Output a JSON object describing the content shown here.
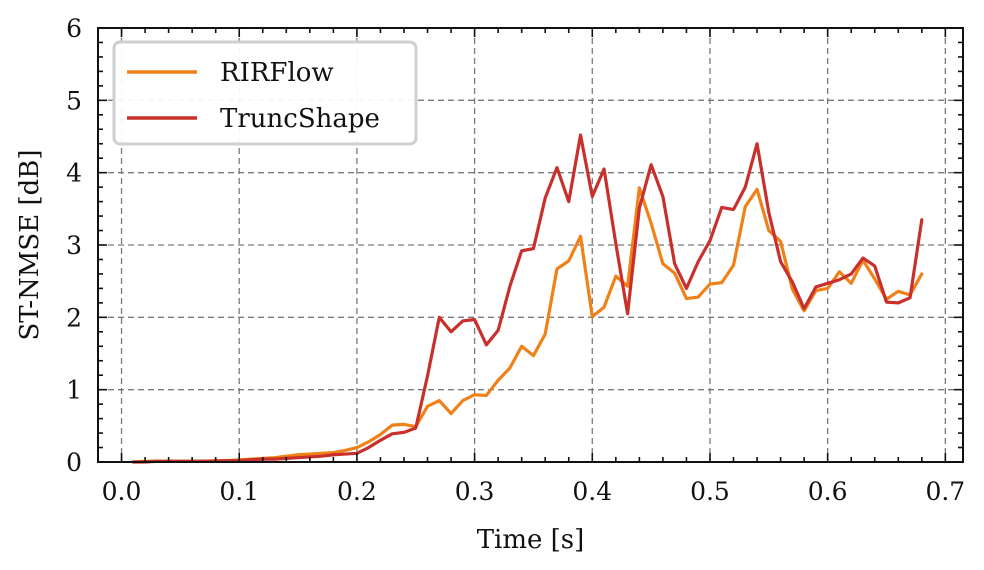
{
  "chart_data": {
    "type": "line",
    "xlabel": "Time [s]",
    "ylabel": "ST-NMSE [dB]",
    "xlim": [
      -0.02,
      0.715
    ],
    "ylim": [
      0,
      6
    ],
    "xticks": [
      0.0,
      0.1,
      0.2,
      0.3,
      0.4,
      0.5,
      0.6,
      0.7
    ],
    "xtick_labels": [
      "0.0",
      "0.1",
      "0.2",
      "0.3",
      "0.4",
      "0.5",
      "0.6",
      "0.7"
    ],
    "yticks": [
      0,
      1,
      2,
      3,
      4,
      5,
      6
    ],
    "ytick_labels": [
      "0",
      "1",
      "2",
      "3",
      "4",
      "5",
      "6"
    ],
    "grid": true,
    "legend_position": "top-left",
    "series": [
      {
        "name": "RIRFlow",
        "color": "#f08119",
        "x": [
          0.01,
          0.02,
          0.03,
          0.04,
          0.05,
          0.06,
          0.07,
          0.08,
          0.09,
          0.1,
          0.11,
          0.12,
          0.13,
          0.14,
          0.15,
          0.16,
          0.17,
          0.18,
          0.19,
          0.2,
          0.21,
          0.22,
          0.23,
          0.24,
          0.25,
          0.26,
          0.27,
          0.28,
          0.29,
          0.3,
          0.31,
          0.32,
          0.33,
          0.34,
          0.35,
          0.36,
          0.37,
          0.38,
          0.39,
          0.4,
          0.41,
          0.42,
          0.43,
          0.44,
          0.45,
          0.46,
          0.47,
          0.48,
          0.49,
          0.5,
          0.51,
          0.52,
          0.53,
          0.54,
          0.55,
          0.56,
          0.57,
          0.58,
          0.59,
          0.6,
          0.61,
          0.62,
          0.63,
          0.64,
          0.65,
          0.66,
          0.67,
          0.68
        ],
        "values": [
          0.0,
          0.01,
          0.01,
          0.01,
          0.01,
          0.01,
          0.01,
          0.02,
          0.02,
          0.03,
          0.04,
          0.05,
          0.06,
          0.08,
          0.1,
          0.11,
          0.12,
          0.13,
          0.16,
          0.2,
          0.28,
          0.38,
          0.51,
          0.52,
          0.49,
          0.77,
          0.85,
          0.67,
          0.85,
          0.93,
          0.92,
          1.13,
          1.3,
          1.6,
          1.47,
          1.77,
          2.67,
          2.78,
          3.12,
          2.01,
          2.14,
          2.57,
          2.43,
          3.79,
          3.3,
          2.74,
          2.61,
          2.26,
          2.28,
          2.46,
          2.48,
          2.72,
          3.53,
          3.77,
          3.2,
          3.05,
          2.39,
          2.09,
          2.37,
          2.4,
          2.63,
          2.47,
          2.79,
          2.53,
          2.25,
          2.36,
          2.31,
          2.6
        ]
      },
      {
        "name": "TruncShape",
        "color": "#c9302c",
        "x": [
          0.01,
          0.02,
          0.03,
          0.04,
          0.05,
          0.06,
          0.07,
          0.08,
          0.09,
          0.1,
          0.11,
          0.12,
          0.13,
          0.14,
          0.15,
          0.16,
          0.17,
          0.18,
          0.19,
          0.2,
          0.21,
          0.22,
          0.23,
          0.24,
          0.25,
          0.26,
          0.27,
          0.28,
          0.29,
          0.3,
          0.31,
          0.32,
          0.33,
          0.34,
          0.35,
          0.36,
          0.37,
          0.38,
          0.39,
          0.4,
          0.41,
          0.42,
          0.43,
          0.44,
          0.45,
          0.46,
          0.47,
          0.48,
          0.49,
          0.5,
          0.51,
          0.52,
          0.53,
          0.54,
          0.55,
          0.56,
          0.57,
          0.58,
          0.59,
          0.6,
          0.61,
          0.62,
          0.63,
          0.64,
          0.65,
          0.66,
          0.67,
          0.68
        ],
        "values": [
          0.0,
          0.0,
          0.01,
          0.01,
          0.01,
          0.01,
          0.01,
          0.01,
          0.02,
          0.02,
          0.03,
          0.04,
          0.04,
          0.05,
          0.06,
          0.07,
          0.08,
          0.1,
          0.11,
          0.12,
          0.2,
          0.3,
          0.39,
          0.41,
          0.47,
          1.19,
          2.0,
          1.8,
          1.95,
          1.97,
          1.62,
          1.82,
          2.43,
          2.92,
          2.95,
          3.65,
          4.07,
          3.6,
          4.52,
          3.67,
          4.05,
          3.02,
          2.05,
          3.51,
          4.11,
          3.67,
          2.74,
          2.4,
          2.77,
          3.06,
          3.52,
          3.49,
          3.8,
          4.4,
          3.45,
          2.77,
          2.49,
          2.12,
          2.42,
          2.47,
          2.52,
          2.6,
          2.82,
          2.71,
          2.21,
          2.2,
          2.27,
          3.35
        ]
      }
    ]
  }
}
